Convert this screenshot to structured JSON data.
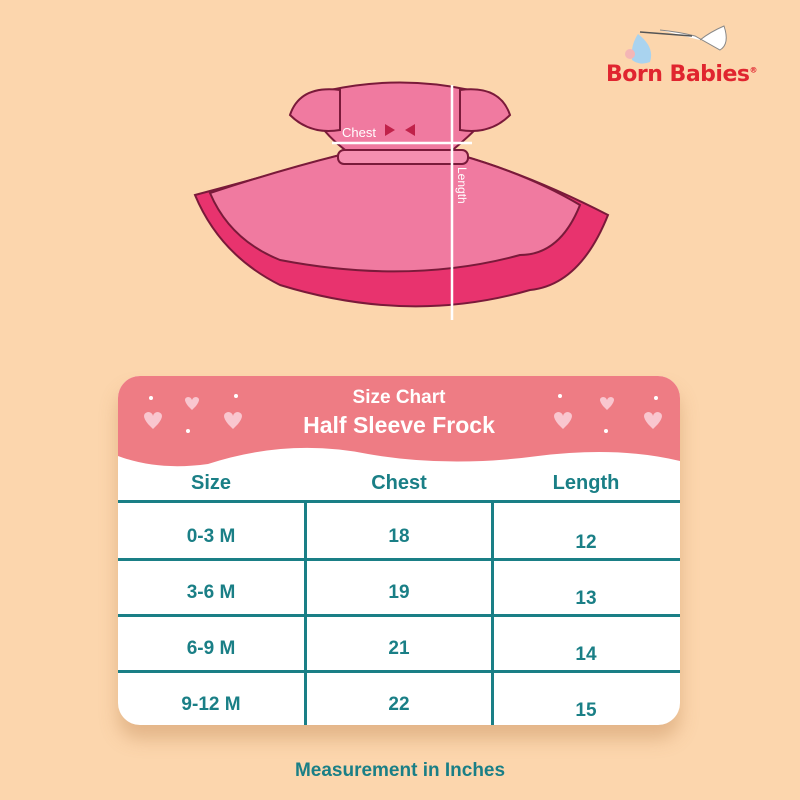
{
  "brand": {
    "name": "Born Babies",
    "registered": "®"
  },
  "diagram": {
    "chest_label": "Chest",
    "length_label": "Length"
  },
  "chart": {
    "title": "Size Chart",
    "product": "Half Sleeve Frock",
    "headers": [
      "Size",
      "Chest",
      "Length"
    ],
    "rows": [
      [
        "0-3 M",
        "18",
        "12"
      ],
      [
        "3-6 M",
        "19",
        "13"
      ],
      [
        "6-9 M",
        "21",
        "14"
      ],
      [
        "9-12 M",
        "22",
        "15"
      ]
    ]
  },
  "footer": "Measurement in Inches",
  "colors": {
    "background": "#fcd6ad",
    "header": "#ee7c84",
    "accent": "#1a7f86",
    "brand": "#e0252f"
  }
}
